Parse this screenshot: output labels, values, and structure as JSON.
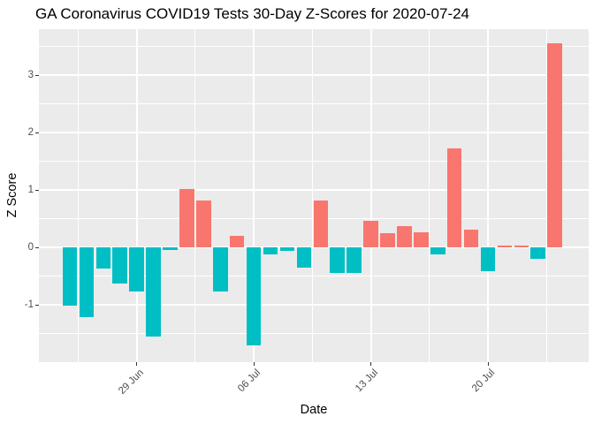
{
  "chart_data": {
    "type": "bar",
    "title": "GA Coronavirus COVID19 Tests 30-Day Z-Scores for 2020-07-24",
    "xlabel": "Date",
    "ylabel": "Z Score",
    "x": [
      "2020-06-25",
      "2020-06-26",
      "2020-06-27",
      "2020-06-28",
      "2020-06-29",
      "2020-06-30",
      "2020-07-01",
      "2020-07-02",
      "2020-07-03",
      "2020-07-04",
      "2020-07-05",
      "2020-07-06",
      "2020-07-07",
      "2020-07-08",
      "2020-07-09",
      "2020-07-10",
      "2020-07-11",
      "2020-07-12",
      "2020-07-13",
      "2020-07-14",
      "2020-07-15",
      "2020-07-16",
      "2020-07-17",
      "2020-07-18",
      "2020-07-19",
      "2020-07-20",
      "2020-07-21",
      "2020-07-22",
      "2020-07-23",
      "2020-07-24"
    ],
    "values": [
      -1.01,
      -1.21,
      -0.37,
      -0.63,
      -0.77,
      -1.56,
      -0.04,
      1.02,
      0.82,
      -0.77,
      0.2,
      -1.7,
      -0.13,
      -0.06,
      -0.35,
      0.82,
      -0.44,
      -0.44,
      0.46,
      0.25,
      0.37,
      0.26,
      -0.13,
      1.72,
      0.31,
      -0.41,
      0.03,
      0.03,
      -0.2,
      3.55
    ],
    "fill_rule": "positive values salmon, negative values teal",
    "colors": {
      "positive": "#F8766D",
      "negative": "#00BFC4"
    },
    "x_ticks": [
      {
        "label": "29 Jun",
        "index": 4
      },
      {
        "label": "06 Jul",
        "index": 11
      },
      {
        "label": "13 Jul",
        "index": 18
      },
      {
        "label": "20 Jul",
        "index": 25
      }
    ],
    "x_minor_indices": [
      0.5,
      7.5,
      14.5,
      21.5,
      28.5
    ],
    "y_ticks": [
      {
        "label": "-1",
        "value": -1
      },
      {
        "label": "0",
        "value": 0
      },
      {
        "label": "1",
        "value": 1
      },
      {
        "label": "2",
        "value": 2
      },
      {
        "label": "3",
        "value": 3
      }
    ],
    "y_minor": [
      -1.5,
      -0.5,
      0.5,
      1.5,
      2.5,
      3.5
    ],
    "ylim": [
      -2.0,
      3.8
    ],
    "grid": "major and minor white gridlines on grey panel",
    "legend": "none",
    "panel_bg": "#EBEBEB",
    "grid_color": "#FFFFFF",
    "tick_mark_color": "#333333",
    "tick_label_color": "#4D4D4D",
    "title_color": "#000000"
  }
}
